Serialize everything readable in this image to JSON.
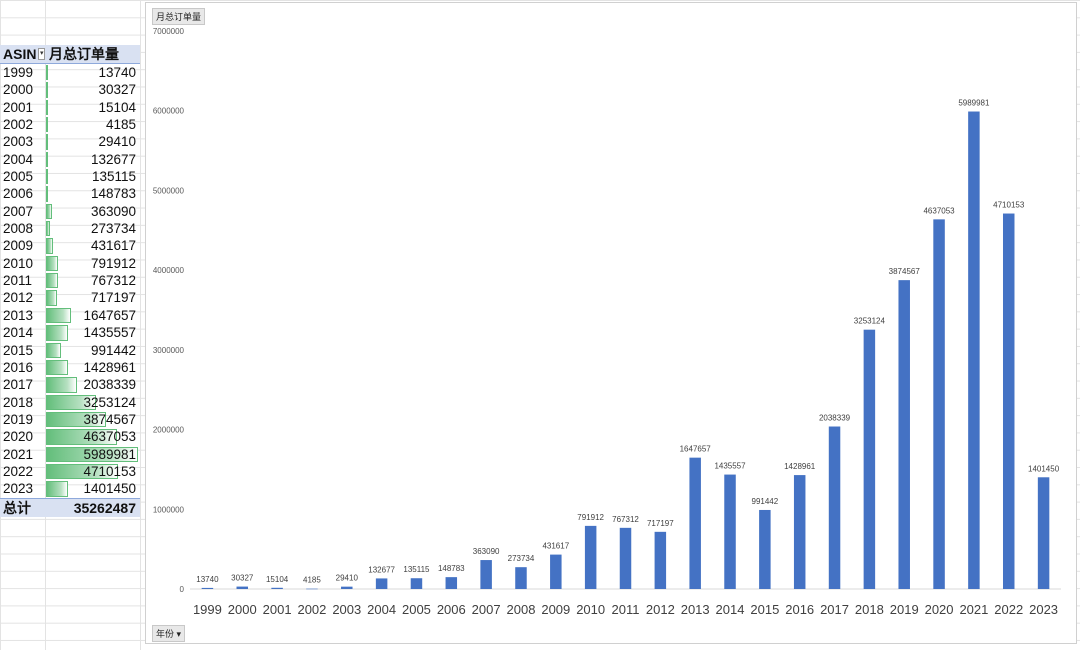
{
  "pivot": {
    "header_row_label": "ASIN",
    "header_value": "月总订单量",
    "filter_icon": "filter-dropdown-icon",
    "rows": [
      {
        "year": "1999",
        "value": "13740"
      },
      {
        "year": "2000",
        "value": "30327"
      },
      {
        "year": "2001",
        "value": "15104"
      },
      {
        "year": "2002",
        "value": "4185"
      },
      {
        "year": "2003",
        "value": "29410"
      },
      {
        "year": "2004",
        "value": "132677"
      },
      {
        "year": "2005",
        "value": "135115"
      },
      {
        "year": "2006",
        "value": "148783"
      },
      {
        "year": "2007",
        "value": "363090"
      },
      {
        "year": "2008",
        "value": "273734"
      },
      {
        "year": "2009",
        "value": "431617"
      },
      {
        "year": "2010",
        "value": "791912"
      },
      {
        "year": "2011",
        "value": "767312"
      },
      {
        "year": "2012",
        "value": "717197"
      },
      {
        "year": "2013",
        "value": "1647657"
      },
      {
        "year": "2014",
        "value": "1435557"
      },
      {
        "year": "2015",
        "value": "991442"
      },
      {
        "year": "2016",
        "value": "1428961"
      },
      {
        "year": "2017",
        "value": "2038339"
      },
      {
        "year": "2018",
        "value": "3253124"
      },
      {
        "year": "2019",
        "value": "3874567"
      },
      {
        "year": "2020",
        "value": "4637053"
      },
      {
        "year": "2021",
        "value": "5989981"
      },
      {
        "year": "2022",
        "value": "4710153"
      },
      {
        "year": "2023",
        "value": "1401450"
      }
    ],
    "total_label": "总计",
    "total_value": "35262487",
    "databar_color": "#63be7b"
  },
  "chart_field_buttons": {
    "value_field": "月总订单量",
    "axis_field": "年份",
    "axis_dropdown_icon": "dropdown-arrow-icon"
  },
  "chart_data": {
    "type": "bar",
    "categories": [
      "1999",
      "2000",
      "2001",
      "2002",
      "2003",
      "2004",
      "2005",
      "2006",
      "2007",
      "2008",
      "2009",
      "2010",
      "2011",
      "2012",
      "2013",
      "2014",
      "2015",
      "2016",
      "2017",
      "2018",
      "2019",
      "2020",
      "2021",
      "2022",
      "2023"
    ],
    "values": [
      13740,
      30327,
      15104,
      4185,
      29410,
      132677,
      135115,
      148783,
      363090,
      273734,
      431617,
      791912,
      767312,
      717197,
      1647657,
      1435557,
      991442,
      1428961,
      2038339,
      3253124,
      3874567,
      4637053,
      5989981,
      4710153,
      1401450
    ],
    "ylim": [
      0,
      7000000
    ],
    "yticks": [
      0,
      1000000,
      2000000,
      3000000,
      4000000,
      5000000,
      6000000,
      7000000
    ],
    "bar_color": "#4472c4",
    "grid": false,
    "data_labels": true
  }
}
